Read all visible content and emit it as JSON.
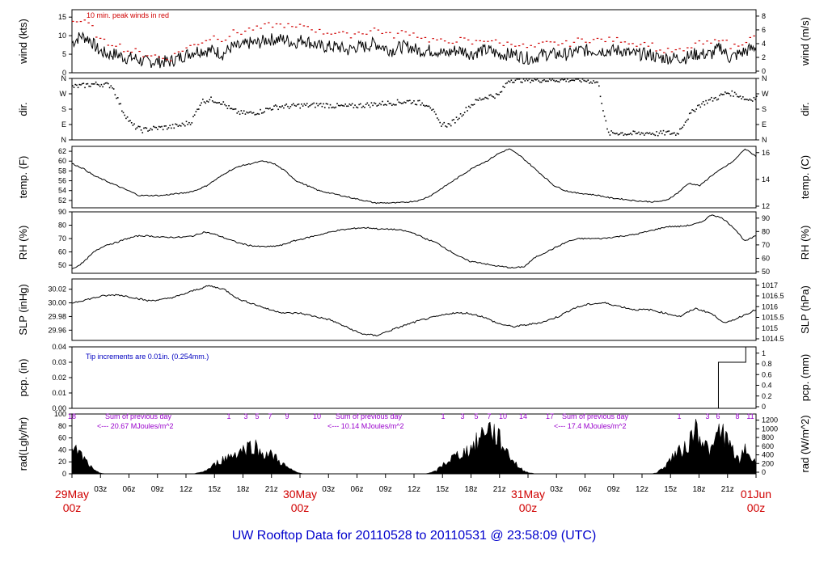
{
  "title": "UW Rooftop Data for 20110528  to  20110531 @ 23:58:09  (UTC)",
  "chart_data": {
    "type": "line",
    "x_start": "2011-05-29 00z",
    "x_end": "2011-06-01 00z",
    "x_tick_labels": [
      "03z",
      "06z",
      "09z",
      "12z",
      "15z",
      "18z",
      "21z",
      "03z",
      "06z",
      "09z",
      "12z",
      "15z",
      "18z",
      "21z",
      "03z",
      "06z",
      "09z",
      "12z",
      "15z",
      "18z",
      "21z"
    ],
    "day_labels": [
      {
        "day": "29May",
        "hour": "00z"
      },
      {
        "day": "30May",
        "hour": "00z"
      },
      {
        "day": "31May",
        "hour": "00z"
      },
      {
        "day": "01Jun",
        "hour": "00z"
      }
    ],
    "panels": [
      {
        "id": "wind",
        "ylabel": "wind (kts)",
        "ylabel_right": "wind (m/s)",
        "ylim": [
          0,
          17
        ],
        "yticks": [
          0,
          5,
          10,
          15
        ],
        "right_ticks": [
          "0",
          "2",
          "4",
          "6",
          "8"
        ],
        "note": "10 min. peak winds in red",
        "series": [
          {
            "name": "wind speed",
            "values": [
              8,
              10,
              9,
              6,
              5,
              5,
              4,
              4,
              3,
              3,
              3,
              3,
              4,
              5,
              6,
              6,
              6,
              5,
              7,
              7,
              8,
              8,
              9,
              9,
              9,
              8,
              9,
              8,
              7,
              7,
              7,
              6,
              7,
              7,
              8,
              7,
              6,
              7,
              7,
              6,
              6,
              6,
              5,
              6,
              6,
              5,
              6,
              6,
              5,
              5,
              5,
              4,
              4,
              5,
              5,
              5,
              5,
              6,
              6,
              6,
              6,
              6,
              6,
              5,
              5,
              5,
              4,
              4,
              4,
              4,
              5,
              5,
              5,
              7,
              4,
              5,
              6,
              7
            ]
          },
          {
            "name": "10 min. peak winds",
            "color": "#d00000",
            "values": [
              14,
              14,
              13,
              9,
              8,
              8,
              6,
              6,
              5,
              5,
              4,
              4,
              6,
              7,
              8,
              9,
              10,
              9,
              11,
              11,
              12,
              12,
              13,
              13,
              13,
              12,
              13,
              12,
              11,
              11,
              11,
              10,
              11,
              11,
              12,
              11,
              10,
              11,
              11,
              10,
              9,
              9,
              8,
              9,
              9,
              8,
              9,
              9,
              8,
              8,
              8,
              7,
              7,
              8,
              8,
              8,
              8,
              9,
              9,
              9,
              9,
              9,
              9,
              8,
              8,
              8,
              6,
              6,
              6,
              6,
              8,
              8,
              8,
              10,
              7,
              8,
              9,
              10
            ]
          }
        ]
      },
      {
        "id": "dir",
        "ylabel": "dir.",
        "ylabel_right": "dir.",
        "ylim": [
          0,
          360
        ],
        "ytick_labels": [
          "N",
          "E",
          "S",
          "W",
          "N"
        ],
        "series": [
          {
            "name": "wind direction",
            "values": [
              315,
              320,
              330,
              330,
              320,
              180,
              90,
              60,
              70,
              75,
              80,
              90,
              110,
              230,
              240,
              225,
              180,
              160,
              160,
              170,
              190,
              200,
              200,
              205,
              205,
              210,
              205,
              200,
              200,
              205,
              210,
              215,
              220,
              225,
              230,
              220,
              210,
              100,
              90,
              140,
              200,
              240,
              260,
              265,
              355,
              355,
              355,
              355,
              355,
              355,
              355,
              355,
              350,
              340,
              40,
              45,
              40,
              40,
              45,
              40,
              45,
              40,
              130,
              200,
              230,
              250,
              280,
              270,
              240,
              250
            ]
          }
        ]
      },
      {
        "id": "temp",
        "ylabel": "temp. (F)",
        "ylabel_right": "temp. (C)",
        "ylim": [
          50.5,
          63
        ],
        "yticks": [
          52,
          54,
          56,
          58,
          60,
          62
        ],
        "right_ticks": [
          "12",
          "14",
          "16"
        ],
        "series": [
          {
            "name": "temperature",
            "values": [
              59.5,
              58.5,
              57,
              56,
              55,
              54,
              53,
              53,
              53,
              53.3,
              53.5,
              54,
              55,
              56.5,
              58,
              59,
              59.5,
              60,
              59.5,
              58,
              56,
              55,
              54,
              53.5,
              53,
              52.5,
              52,
              51.5,
              51.5,
              51.5,
              51.7,
              52,
              53,
              54.5,
              56,
              57.5,
              59,
              60,
              61.5,
              62.5,
              61,
              59,
              57,
              55,
              54,
              53.5,
              53.3,
              53,
              52.5,
              52.3,
              52,
              51.8,
              51.7,
              52,
              53.5,
              55.5,
              55,
              57,
              58.5,
              60,
              62.5,
              61
            ]
          }
        ]
      },
      {
        "id": "rh",
        "ylabel": "RH (%)",
        "ylabel_right": "RH (%)",
        "ylim": [
          44,
          90
        ],
        "yticks": [
          50,
          60,
          70,
          80,
          90
        ],
        "right_ticks": [
          "50",
          "60",
          "70",
          "80",
          "90"
        ],
        "series": [
          {
            "name": "relative humidity",
            "values": [
              47,
              52,
              60,
              65,
              67,
              70,
              72,
              72,
              71,
              71,
              71,
              72,
              75,
              73,
              70,
              67,
              65,
              64,
              64,
              65,
              68,
              70,
              72,
              74,
              76,
              77,
              78,
              78,
              77,
              77,
              76,
              74,
              70,
              67,
              62,
              57,
              53,
              52,
              50,
              49,
              48,
              49,
              56,
              60,
              64,
              68,
              70,
              70,
              70,
              71,
              72,
              73,
              75,
              77,
              79,
              79,
              80,
              82,
              88,
              85,
              78,
              68,
              72
            ]
          }
        ]
      },
      {
        "id": "slp",
        "ylabel": "SLP (inHg)",
        "ylabel_right": "SLP (hPa)",
        "ylim": [
          29.945,
          30.035
        ],
        "yticks": [
          29.96,
          29.98,
          30.0,
          30.02
        ],
        "right_ticks": [
          "1014.5",
          "1015",
          "1015.5",
          "1016",
          "1016.5",
          "1017"
        ],
        "series": [
          {
            "name": "sea level pressure",
            "values": [
              30.0,
              30.005,
              30.01,
              30.012,
              30.008,
              30.003,
              30.005,
              30.01,
              30.018,
              30.025,
              30.02,
              30.005,
              29.998,
              29.99,
              29.985,
              29.985,
              29.98,
              29.975,
              29.965,
              29.955,
              29.952,
              29.96,
              29.968,
              29.975,
              29.98,
              29.985,
              29.985,
              29.98,
              29.97,
              29.965,
              29.968,
              29.972,
              29.98,
              29.992,
              29.998,
              30.0,
              29.995,
              29.99,
              29.99,
              29.985,
              29.98,
              29.992,
              29.985,
              29.97,
              29.98,
              29.99
            ]
          }
        ]
      },
      {
        "id": "pcp",
        "ylabel": "pcp. (in)",
        "ylabel_right": "pcp. (mm)",
        "ylim": [
          0,
          0.04
        ],
        "yticks": [
          0.0,
          0.01,
          0.02,
          0.03,
          0.04
        ],
        "right_ticks": [
          "0",
          "0.2",
          "0.4",
          "0.6",
          "0.8",
          "1"
        ],
        "note": "Tip increments are 0.01in. (0.254mm.)",
        "color": "#0000c0",
        "series": [
          {
            "name": "precipitation",
            "steps": [
              [
                0,
                0
              ],
              [
                94.5,
                0
              ],
              [
                94.5,
                0.03
              ],
              [
                98.5,
                0.03
              ],
              [
                98.5,
                0.04
              ],
              [
                100,
                0.04
              ]
            ]
          }
        ]
      },
      {
        "id": "rad",
        "ylabel": "rad(Lgly/hr)",
        "ylabel_right": "rad (W/m^2)",
        "ylim": [
          0,
          100
        ],
        "yticks": [
          0,
          20,
          40,
          60,
          80,
          100
        ],
        "right_ticks": [
          "0",
          "200",
          "400",
          "600",
          "800",
          "1000",
          "1200"
        ],
        "top_labels": [
          "18",
          "1",
          "3",
          "5",
          "7",
          "9",
          "10",
          "1",
          "3",
          "5",
          "7",
          "10",
          "14",
          "17",
          "1",
          "3",
          "6",
          "8",
          "11"
        ],
        "sums": [
          {
            "line1": "Sum of previous day",
            "line2": "<--- 20.67 MJoules/m^2"
          },
          {
            "line1": "Sum of previous day",
            "line2": "<--- 10.14 MJoules/m^2"
          },
          {
            "line1": "Sum of previous day",
            "line2": "<--- 17.4 MJoules/m^2"
          }
        ],
        "series": [
          {
            "name": "solar radiation",
            "values": [
              40,
              42,
              30,
              18,
              6,
              2,
              0,
              0,
              0,
              0,
              0,
              0,
              0,
              0,
              0,
              0,
              0,
              0,
              0,
              0,
              0,
              0,
              0,
              2,
              5,
              10,
              18,
              25,
              30,
              35,
              40,
              45,
              50,
              55,
              40,
              38,
              35,
              30,
              20,
              12,
              6,
              2,
              0,
              0,
              0,
              0,
              0,
              0,
              0,
              0,
              0,
              0,
              0,
              0,
              0,
              0,
              0,
              0,
              0,
              0,
              0,
              0,
              0,
              0,
              0,
              2,
              5,
              15,
              22,
              30,
              35,
              40,
              45,
              55,
              65,
              90,
              80,
              70,
              55,
              40,
              25,
              12,
              5,
              2,
              0,
              0,
              0,
              0,
              0,
              0,
              0,
              0,
              0,
              0,
              0,
              0,
              0,
              0,
              0,
              0,
              0,
              0,
              0,
              0,
              0,
              0,
              2,
              10,
              20,
              35,
              40,
              45,
              60,
              90,
              70,
              50,
              40,
              75,
              80,
              55,
              40,
              20,
              50,
              30,
              20
            ]
          }
        ]
      }
    ]
  }
}
